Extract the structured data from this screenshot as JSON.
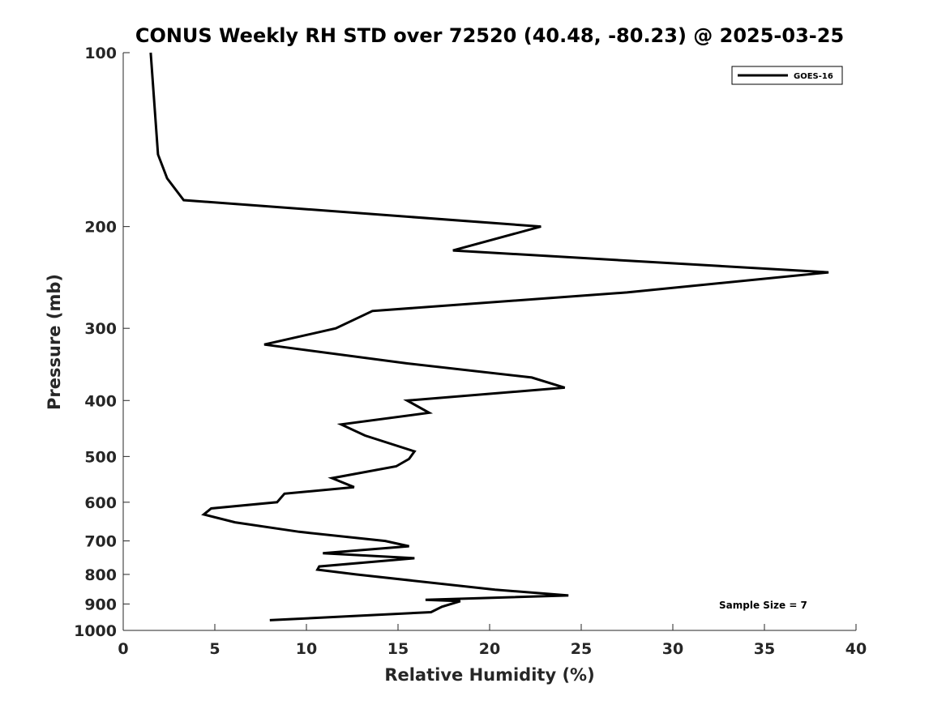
{
  "chart_data": {
    "type": "line",
    "title": "CONUS Weekly RH STD over 72520 (40.48, -80.23) @ 2025-03-25",
    "xlabel": "Relative Humidity (%)",
    "ylabel": "Pressure (mb)",
    "xlim": [
      0,
      40
    ],
    "ylim": [
      100,
      1000
    ],
    "y_scale": "log",
    "y_reversed": true,
    "x_ticks": [
      0,
      5,
      10,
      15,
      20,
      25,
      30,
      35,
      40
    ],
    "y_ticks": [
      100,
      200,
      300,
      400,
      500,
      600,
      700,
      800,
      900,
      1000
    ],
    "grid": false,
    "legend": {
      "placement": "top-right",
      "entries": [
        "GOES-16"
      ]
    },
    "annotation": "Sample Size = 7",
    "colors": {
      "line": "#000000",
      "axis": "#262626"
    },
    "series": [
      {
        "name": "GOES-16",
        "x": [
          1.5,
          1.9,
          2.4,
          3.3,
          22.8,
          18.0,
          38.5,
          27.5,
          13.6,
          11.6,
          7.7,
          15.5,
          22.3,
          24.1,
          15.5,
          16.7,
          11.9,
          13.2,
          15.9,
          15.6,
          14.9,
          11.4,
          12.6,
          8.8,
          8.4,
          4.8,
          4.4,
          6.1,
          9.6,
          14.3,
          15.6,
          10.9,
          15.9,
          10.7,
          10.6,
          12.7,
          20.3,
          24.3,
          16.5,
          18.4,
          17.4,
          16.8,
          8.0
        ],
        "y": [
          100,
          150,
          165,
          180,
          200,
          220,
          240,
          260,
          280,
          300,
          320,
          345,
          365,
          380,
          400,
          420,
          440,
          460,
          490,
          505,
          520,
          545,
          565,
          580,
          600,
          615,
          630,
          650,
          675,
          700,
          715,
          735,
          750,
          775,
          785,
          800,
          850,
          870,
          885,
          890,
          910,
          930,
          960
        ]
      }
    ]
  }
}
